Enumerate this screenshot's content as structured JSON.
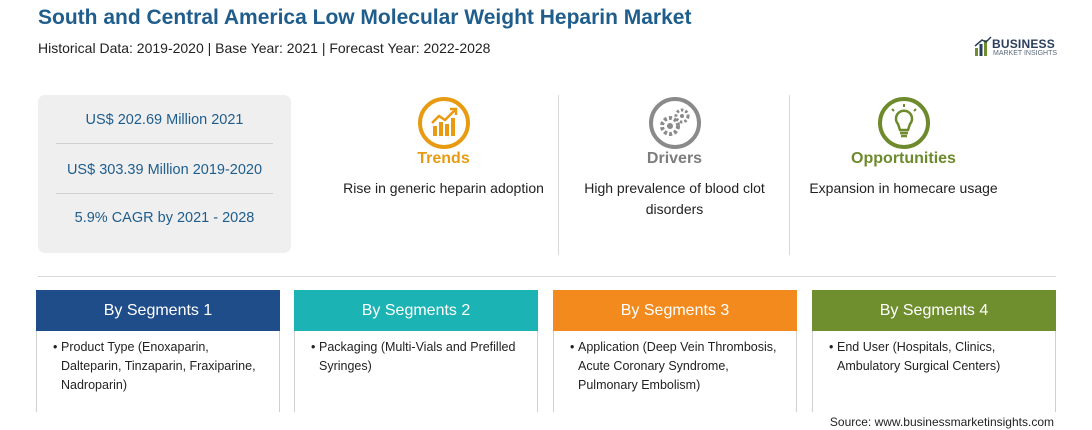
{
  "header": {
    "title": "South and Central America Low Molecular Weight Heparin Market",
    "subtitle": "Historical Data: 2019-2020 | Base Year: 2021 | Forecast Year: 2022-2028"
  },
  "logo": {
    "line1": "BUSINESS",
    "line2": "MARKET INSIGHTS"
  },
  "stats": [
    "US$ 202.69 Million 2021",
    "US$ 303.39 Million 2019-2020",
    "5.9% CAGR by 2021 - 2028"
  ],
  "factors": [
    {
      "heading": "Trends",
      "text": "Rise in generic heparin adoption",
      "icon": "trend-chart-icon"
    },
    {
      "heading": "Drivers",
      "text": "High prevalence of blood clot disorders",
      "icon": "gears-icon"
    },
    {
      "heading": "Opportunities",
      "text": "Expansion in homecare usage",
      "icon": "lightbulb-icon"
    }
  ],
  "segments": [
    {
      "title": "By Segments 1",
      "item": "Product Type (Enoxaparin, Dalteparin, Tinzaparin, Fraxiparine, Nadroparin)"
    },
    {
      "title": "By Segments 2",
      "item": "Packaging (Multi-Vials and Prefilled Syringes)"
    },
    {
      "title": "By Segments 3",
      "item": "Application (Deep Vein Thrombosis, Acute Coronary Syndrome, Pulmonary Embolism)"
    },
    {
      "title": "By Segments 4",
      "item": "End User (Hospitals, Clinics, Ambulatory Surgical Centers)"
    }
  ],
  "bullet": "•",
  "source": "Source: www.businessmarketinsights.com",
  "colors": {
    "title": "#1f5d8c",
    "trends": "#e89b12",
    "drivers": "#7d7d7d",
    "opportunities": "#6d8a2c",
    "segment1": "#1f4d8a",
    "segment2": "#1bb3b3",
    "segment3": "#f28a1e",
    "segment4": "#6f8f2e"
  }
}
